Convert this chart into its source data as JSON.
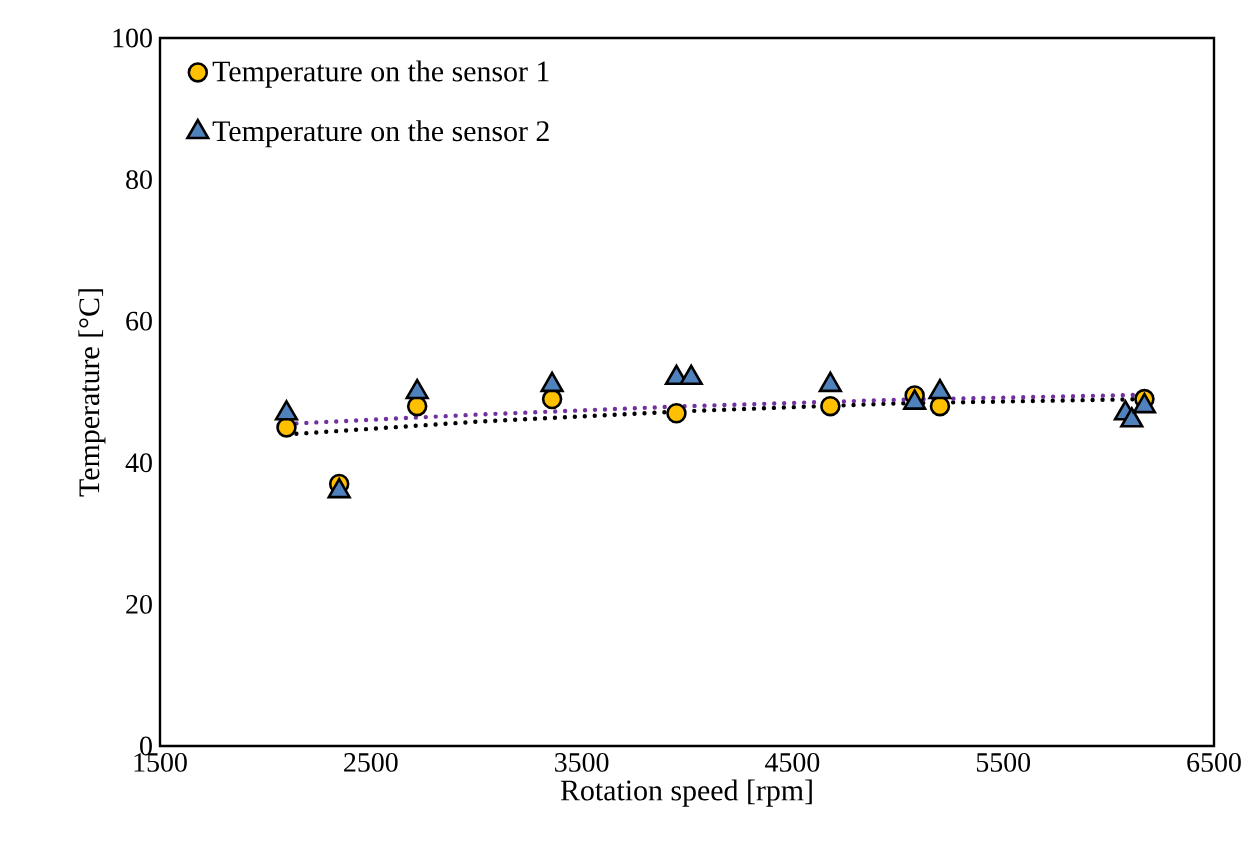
{
  "chart_data": {
    "type": "scatter",
    "xlabel": "Rotation speed [rpm]",
    "ylabel": "Temperature [°C]",
    "xlim": [
      1500,
      6500
    ],
    "xticks": [
      1500,
      2500,
      3500,
      4500,
      5500,
      6500
    ],
    "ylim": [
      0,
      100
    ],
    "yticks": [
      0,
      20,
      40,
      60,
      80,
      100
    ],
    "grid": false,
    "legend": "top left",
    "series": [
      {
        "name": "Temperature on the sensor 1",
        "color": "#ffc000",
        "marker": "circle",
        "x": [
          2100,
          2350,
          2720,
          3360,
          3950,
          4020,
          4680,
          5080,
          5200,
          6170
        ],
        "values": [
          45,
          37,
          48,
          49,
          47,
          null,
          48,
          49.5,
          48,
          49
        ]
      },
      {
        "name": "Temperature on the sensor 2",
        "color": "#4f81bd",
        "marker": "triangle",
        "x": [
          2100,
          2350,
          2720,
          3360,
          3950,
          4020,
          4680,
          5080,
          5200,
          6080,
          6110,
          6170
        ],
        "values": [
          47,
          36,
          50,
          51,
          52,
          52,
          51,
          48.5,
          50,
          47,
          46,
          48
        ]
      },
      {
        "type": "line",
        "line_style": "dotted",
        "color": "#000000",
        "x": [
          2100,
          3000,
          4000,
          5000,
          6170
        ],
        "values": [
          44,
          45.8,
          47.3,
          48.4,
          49
        ]
      },
      {
        "type": "line",
        "line_style": "dotted",
        "color": "#7030a0",
        "x": [
          2100,
          3000,
          4000,
          5000,
          6170
        ],
        "values": [
          45.5,
          46.8,
          48,
          48.9,
          49.6
        ]
      }
    ]
  }
}
